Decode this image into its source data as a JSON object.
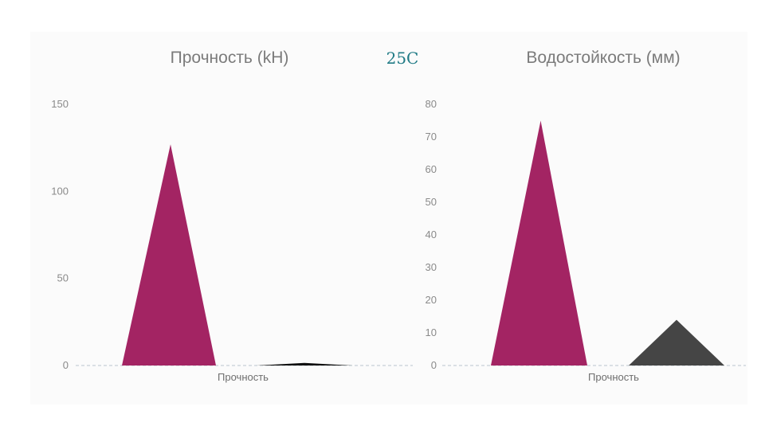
{
  "header": {
    "temperature_label": "25C"
  },
  "colors": {
    "series_primary": "#a32463",
    "series_secondary": "#454545",
    "baseline": "#b9c6cc"
  },
  "chart_data": [
    {
      "type": "area",
      "shape": "triangle",
      "title": "Прочность (kH)",
      "xlabel": "",
      "ylabel": "",
      "categories": [
        "Прочность"
      ],
      "ylim": [
        0,
        150
      ],
      "yticks": [
        0,
        50,
        100,
        150
      ],
      "grid": false,
      "series": [
        {
          "color": "#a32463",
          "values": [
            127
          ]
        },
        {
          "color": "#111111",
          "values": [
            1.5
          ]
        }
      ]
    },
    {
      "type": "area",
      "shape": "triangle",
      "title": "Водостойкость (мм)",
      "xlabel": "",
      "ylabel": "",
      "categories": [
        "Прочность"
      ],
      "ylim": [
        0,
        80
      ],
      "yticks": [
        0,
        10,
        20,
        30,
        40,
        50,
        60,
        70,
        80
      ],
      "grid": false,
      "series": [
        {
          "color": "#a32463",
          "values": [
            75
          ]
        },
        {
          "color": "#454545",
          "values": [
            14
          ]
        }
      ]
    }
  ]
}
